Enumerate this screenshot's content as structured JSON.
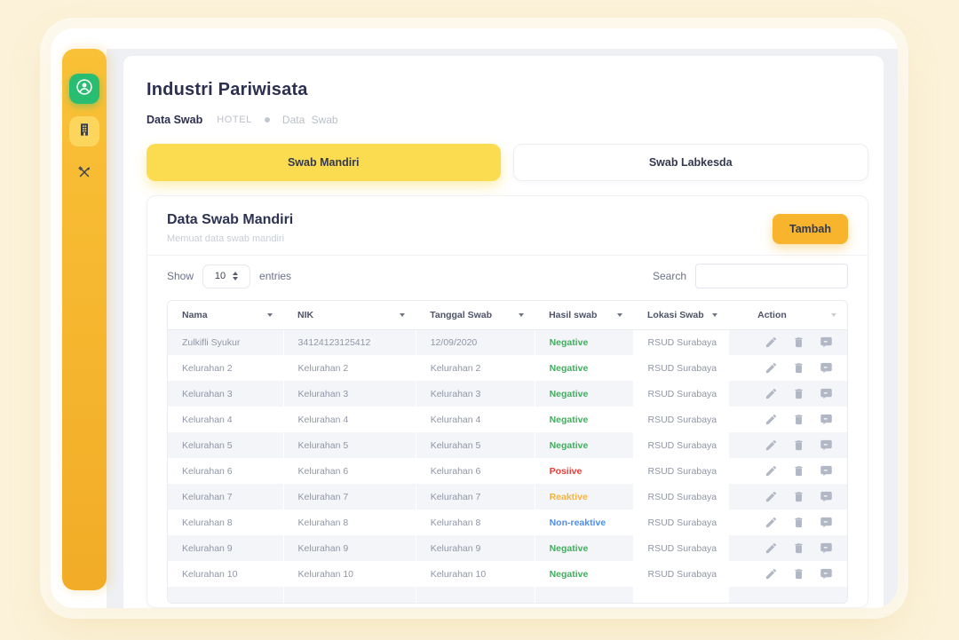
{
  "app": {
    "title": "Industri Pariwisata",
    "breadcrumb": {
      "section": "Data Swab",
      "root": "HOTEL",
      "current": "Data  Swab"
    }
  },
  "sidebar": {
    "items": [
      {
        "id": "profile",
        "icon": "user-avatar-icon",
        "active": false
      },
      {
        "id": "hotel",
        "icon": "building-icon",
        "active": true
      },
      {
        "id": "restaurant",
        "icon": "utensils-icon",
        "active": false
      }
    ]
  },
  "tabs": [
    {
      "label": "Swab Mandiri",
      "active": true
    },
    {
      "label": "Swab Labkesda",
      "active": false
    }
  ],
  "card": {
    "title": "Data Swab Mandiri",
    "subtitle": "Memuat data swab mandiri",
    "add_button": "Tambah",
    "show_label": "Show",
    "entries_value": "10",
    "entries_label": "entries",
    "search_label": "Search",
    "search_value": ""
  },
  "table": {
    "columns": [
      "Nama",
      "NIK",
      "Tanggal Swab",
      "Hasil swab",
      "Lokasi Swab",
      "Action"
    ],
    "action_icons": [
      "edit-icon",
      "delete-icon",
      "comment-icon"
    ],
    "rows": [
      {
        "nama": "Zulkifli Syukur",
        "nik": "34124123125412",
        "tanggal": "12/09/2020",
        "hasil": "Negative",
        "hasil_type": "negative",
        "lokasi": "RSUD Surabaya"
      },
      {
        "nama": "Kelurahan 2",
        "nik": "Kelurahan 2",
        "tanggal": "Kelurahan 2",
        "hasil": "Negative",
        "hasil_type": "negative",
        "lokasi": "RSUD Surabaya"
      },
      {
        "nama": "Kelurahan 3",
        "nik": "Kelurahan 3",
        "tanggal": "Kelurahan 3",
        "hasil": "Negative",
        "hasil_type": "negative",
        "lokasi": "RSUD Surabaya"
      },
      {
        "nama": "Kelurahan 4",
        "nik": "Kelurahan 4",
        "tanggal": "Kelurahan 4",
        "hasil": "Negative",
        "hasil_type": "negative",
        "lokasi": "RSUD Surabaya"
      },
      {
        "nama": "Kelurahan 5",
        "nik": "Kelurahan 5",
        "tanggal": "Kelurahan 5",
        "hasil": "Negative",
        "hasil_type": "negative",
        "lokasi": "RSUD Surabaya"
      },
      {
        "nama": "Kelurahan 6",
        "nik": "Kelurahan 6",
        "tanggal": "Kelurahan 6",
        "hasil": "Posiive",
        "hasil_type": "positive",
        "lokasi": "RSUD Surabaya"
      },
      {
        "nama": "Kelurahan 7",
        "nik": "Kelurahan 7",
        "tanggal": "Kelurahan 7",
        "hasil": "Reaktive",
        "hasil_type": "reactive",
        "lokasi": "RSUD Surabaya"
      },
      {
        "nama": "Kelurahan 8",
        "nik": "Kelurahan 8",
        "tanggal": "Kelurahan 8",
        "hasil": "Non-reaktive",
        "hasil_type": "nonreactive",
        "lokasi": "RSUD Surabaya"
      },
      {
        "nama": "Kelurahan 9",
        "nik": "Kelurahan 9",
        "tanggal": "Kelurahan 9",
        "hasil": "Negative",
        "hasil_type": "negative",
        "lokasi": "RSUD Surabaya"
      },
      {
        "nama": "Kelurahan 10",
        "nik": "Kelurahan 10",
        "tanggal": "Kelurahan 10",
        "hasil": "Negative",
        "hasil_type": "negative",
        "lokasi": "RSUD Surabaya"
      }
    ]
  },
  "colors": {
    "page_background": "#FBF2D9",
    "sidebar_yellow": "#F7B72F",
    "sidebar_active_chip": "#FBD55C",
    "profile_chip_green": "#29BD72",
    "tab_active_yellow": "#FBDC50",
    "add_button_orange": "#F7B42C",
    "heading_navy": "#2B3050",
    "status": {
      "negative": "#3FAF5E",
      "positive": "#EE3A34",
      "reactive": "#F6B23A",
      "nonreactive": "#4B8FF3"
    }
  }
}
